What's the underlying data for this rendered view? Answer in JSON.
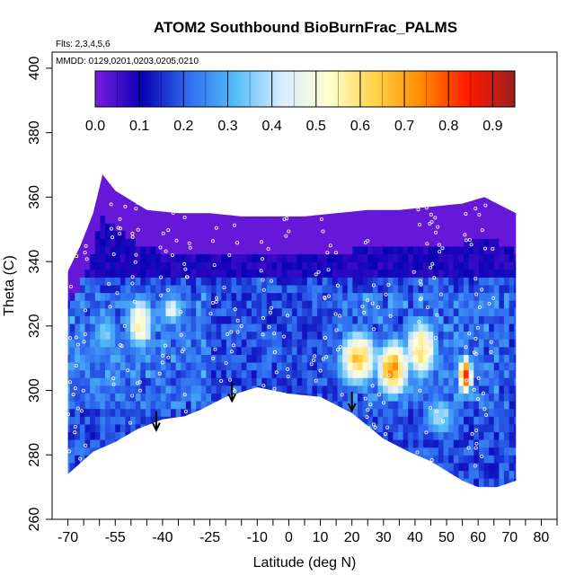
{
  "chart_data": {
    "type": "heatmap",
    "title": "ATOM2 Southbound BioBurnFrac_PALMS",
    "subtitle_flights": "Flts: 2,3,4,5,6",
    "subtitle_dates": "MMDD: 0129,0201,0203,0205,0210",
    "xlabel": "Latitude (deg N)",
    "ylabel": "Theta (C)",
    "xlim": [
      -75,
      85
    ],
    "ylim": [
      260,
      405
    ],
    "x_ticks": [
      -70,
      -55,
      -40,
      -25,
      -10,
      0,
      10,
      20,
      30,
      40,
      50,
      60,
      70,
      80
    ],
    "x_ticks_unlabeled": [
      -65,
      -60,
      -50,
      -45,
      -35,
      -30,
      -20,
      -15,
      -5,
      5,
      15,
      25,
      35,
      45,
      55,
      65,
      75,
      85
    ],
    "y_ticks": [
      260,
      280,
      300,
      320,
      340,
      360,
      380,
      400
    ],
    "colorbar": {
      "ticks": [
        0.0,
        0.1,
        0.2,
        0.3,
        0.4,
        0.5,
        0.6,
        0.7,
        0.8,
        0.9
      ],
      "tick_labels": [
        "0.0",
        "0.1",
        "0.2",
        "0.3",
        "0.4",
        "0.5",
        "0.6",
        "0.7",
        "0.8",
        "0.9"
      ],
      "range": [
        0,
        0.95
      ],
      "colors": [
        "#7a1de0",
        "#0a00b4",
        "#2f6cf0",
        "#52bdf7",
        "#d9ecff",
        "#ffffd2",
        "#ffd44a",
        "#ff8a00",
        "#ff1a00",
        "#9c1e1e"
      ]
    },
    "region_outline": {
      "top": [
        [
          -70,
          337
        ],
        [
          -66,
          345
        ],
        [
          -62,
          355
        ],
        [
          -59,
          367
        ],
        [
          -55,
          362
        ],
        [
          -45,
          356
        ],
        [
          -35,
          355
        ],
        [
          -25,
          355
        ],
        [
          -15,
          354
        ],
        [
          -5,
          354
        ],
        [
          5,
          354
        ],
        [
          15,
          355
        ],
        [
          25,
          356
        ],
        [
          35,
          356
        ],
        [
          45,
          357
        ],
        [
          55,
          358
        ],
        [
          62,
          360
        ],
        [
          66,
          358
        ],
        [
          72,
          355
        ]
      ],
      "bottom": [
        [
          -70,
          274
        ],
        [
          -62,
          281
        ],
        [
          -55,
          284
        ],
        [
          -48,
          288
        ],
        [
          -40,
          291
        ],
        [
          -33,
          292
        ],
        [
          -28,
          294
        ],
        [
          -20,
          298
        ],
        [
          -10,
          301
        ],
        [
          0,
          299
        ],
        [
          10,
          298
        ],
        [
          20,
          293
        ],
        [
          25,
          289
        ],
        [
          30,
          285
        ],
        [
          38,
          281
        ],
        [
          45,
          278
        ],
        [
          50,
          275
        ],
        [
          55,
          272
        ],
        [
          60,
          270
        ],
        [
          66,
          270
        ],
        [
          72,
          272
        ]
      ]
    },
    "biomass_burning_plumes": [
      {
        "lat": -47,
        "theta": 321,
        "value": 0.62,
        "width_deg": 10,
        "height_k": 20
      },
      {
        "lat": -37,
        "theta": 325,
        "value": 0.55,
        "width_deg": 8,
        "height_k": 10
      },
      {
        "lat": 22,
        "theta": 310,
        "value": 0.72,
        "width_deg": 14,
        "height_k": 20
      },
      {
        "lat": 33,
        "theta": 307,
        "value": 0.8,
        "width_deg": 12,
        "height_k": 20
      },
      {
        "lat": 42,
        "theta": 313,
        "value": 0.67,
        "width_deg": 12,
        "height_k": 22
      },
      {
        "lat": 56,
        "theta": 305,
        "value": 0.86,
        "width_deg": 5,
        "height_k": 14
      },
      {
        "lat": -58,
        "theta": 318,
        "value": 0.38,
        "width_deg": 12,
        "height_k": 18
      },
      {
        "lat": 48,
        "theta": 292,
        "value": 0.42,
        "width_deg": 14,
        "height_k": 16
      }
    ],
    "arrows": [
      {
        "lat": -42,
        "theta": 288
      },
      {
        "lat": -18,
        "theta": 297
      },
      {
        "lat": 20,
        "theta": 294
      }
    ]
  }
}
